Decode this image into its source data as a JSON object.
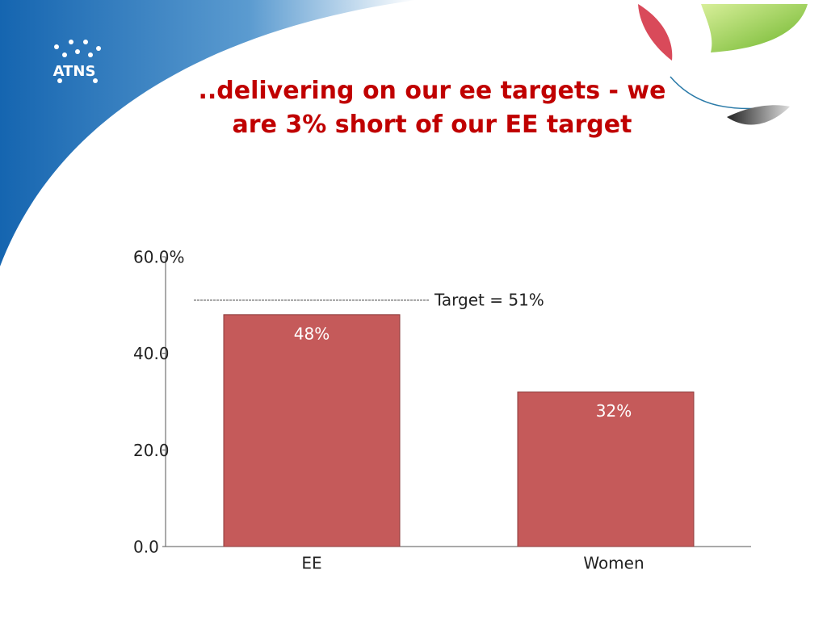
{
  "logo": "ATNS",
  "chart_data": {
    "type": "bar",
    "title": "..delivering on our ee targets - we are 3% short of our EE target",
    "categories": [
      "EE",
      "Women"
    ],
    "values": [
      48,
      32
    ],
    "value_labels": [
      "48%",
      "32%"
    ],
    "color": "#c55a5a",
    "ylim": [
      0,
      60
    ],
    "yticks": [
      {
        "value": 0,
        "label": "0.0"
      },
      {
        "value": 20,
        "label": "20.0"
      },
      {
        "value": 40,
        "label": "40.0"
      },
      {
        "value": 60,
        "label": "60.0%"
      }
    ],
    "target": {
      "value": 51,
      "label": "Target = 51%"
    }
  }
}
